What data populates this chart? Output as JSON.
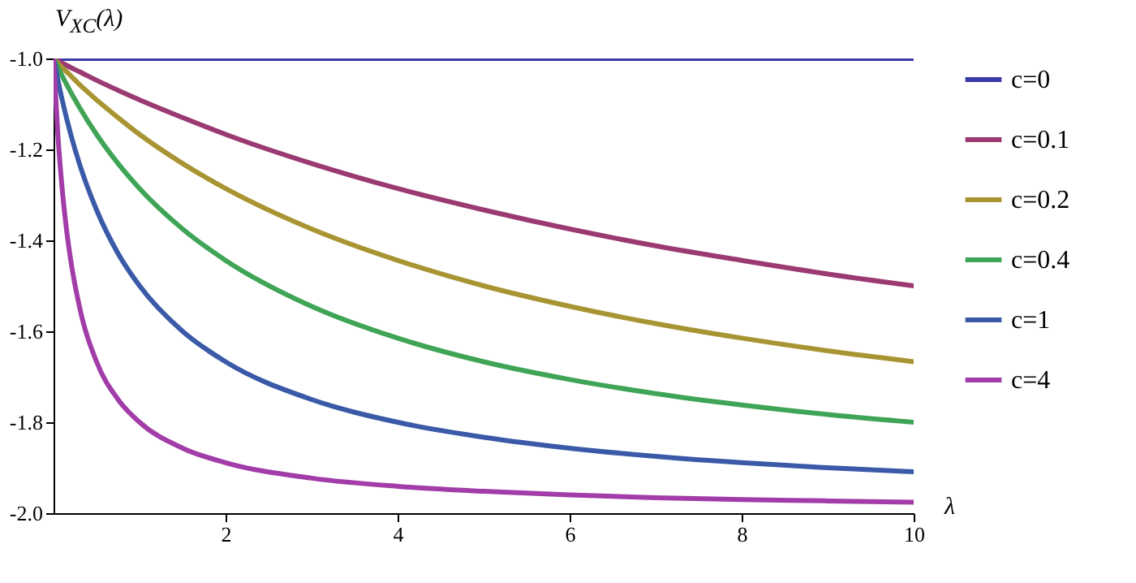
{
  "chart_data": {
    "type": "line",
    "xlabel": "λ",
    "ylabel": "V$_{XC}$(λ)",
    "legend": "right",
    "xlim": [
      0,
      10
    ],
    "ylim": [
      -2.0,
      -1.0
    ],
    "xticks": [
      2,
      4,
      6,
      8,
      10
    ],
    "yticks": [
      {
        "value": -1.0,
        "label": "-1.0"
      },
      {
        "value": -1.2,
        "label": "-1.2"
      },
      {
        "value": -1.4,
        "label": "-1.4"
      },
      {
        "value": -1.6,
        "label": "-1.6"
      },
      {
        "value": -1.8,
        "label": "-1.8"
      },
      {
        "value": -2.0,
        "label": "-2.0"
      }
    ],
    "x": [
      0,
      0.1,
      0.2,
      0.3,
      0.5,
      0.75,
      1,
      1.5,
      2,
      3,
      4,
      5,
      6,
      7,
      8,
      9,
      10
    ],
    "series": [
      {
        "name": "c=0",
        "color": "#3b3ba8",
        "values": [
          -1,
          -1,
          -1,
          -1,
          -1,
          -1,
          -1,
          -1,
          -1,
          -1,
          -1,
          -1,
          -1,
          -1,
          -1,
          -1,
          -1
        ]
      },
      {
        "name": "c=0.1",
        "color": "#9b3a72",
        "values": [
          -1,
          -1.01,
          -1.02,
          -1.029,
          -1.048,
          -1.07,
          -1.091,
          -1.13,
          -1.167,
          -1.231,
          -1.286,
          -1.333,
          -1.375,
          -1.412,
          -1.444,
          -1.474,
          -1.5
        ]
      },
      {
        "name": "c=0.2",
        "color": "#a89432",
        "values": [
          -1,
          -1.02,
          -1.038,
          -1.057,
          -1.091,
          -1.13,
          -1.167,
          -1.231,
          -1.286,
          -1.375,
          -1.444,
          -1.5,
          -1.545,
          -1.583,
          -1.615,
          -1.643,
          -1.667
        ]
      },
      {
        "name": "c=0.4",
        "color": "#3fa455",
        "values": [
          -1,
          -1.038,
          -1.074,
          -1.107,
          -1.167,
          -1.231,
          -1.286,
          -1.375,
          -1.444,
          -1.545,
          -1.615,
          -1.667,
          -1.706,
          -1.737,
          -1.762,
          -1.783,
          -1.8
        ]
      },
      {
        "name": "c=1",
        "color": "#3a5aa8",
        "values": [
          -1,
          -1.091,
          -1.167,
          -1.231,
          -1.333,
          -1.429,
          -1.5,
          -1.6,
          -1.667,
          -1.75,
          -1.8,
          -1.833,
          -1.857,
          -1.875,
          -1.889,
          -1.9,
          -1.909
        ]
      },
      {
        "name": "c=4",
        "color": "#a23ca8",
        "x": [
          0,
          0.05,
          0.1,
          0.15,
          0.2,
          0.3,
          0.5,
          0.75,
          1,
          1.5,
          2,
          3,
          4,
          5,
          6,
          7,
          8,
          9,
          10
        ],
        "values": [
          -1,
          -1.167,
          -1.286,
          -1.375,
          -1.444,
          -1.545,
          -1.667,
          -1.75,
          -1.8,
          -1.857,
          -1.889,
          -1.923,
          -1.941,
          -1.952,
          -1.96,
          -1.966,
          -1.97,
          -1.973,
          -1.976
        ]
      }
    ]
  }
}
